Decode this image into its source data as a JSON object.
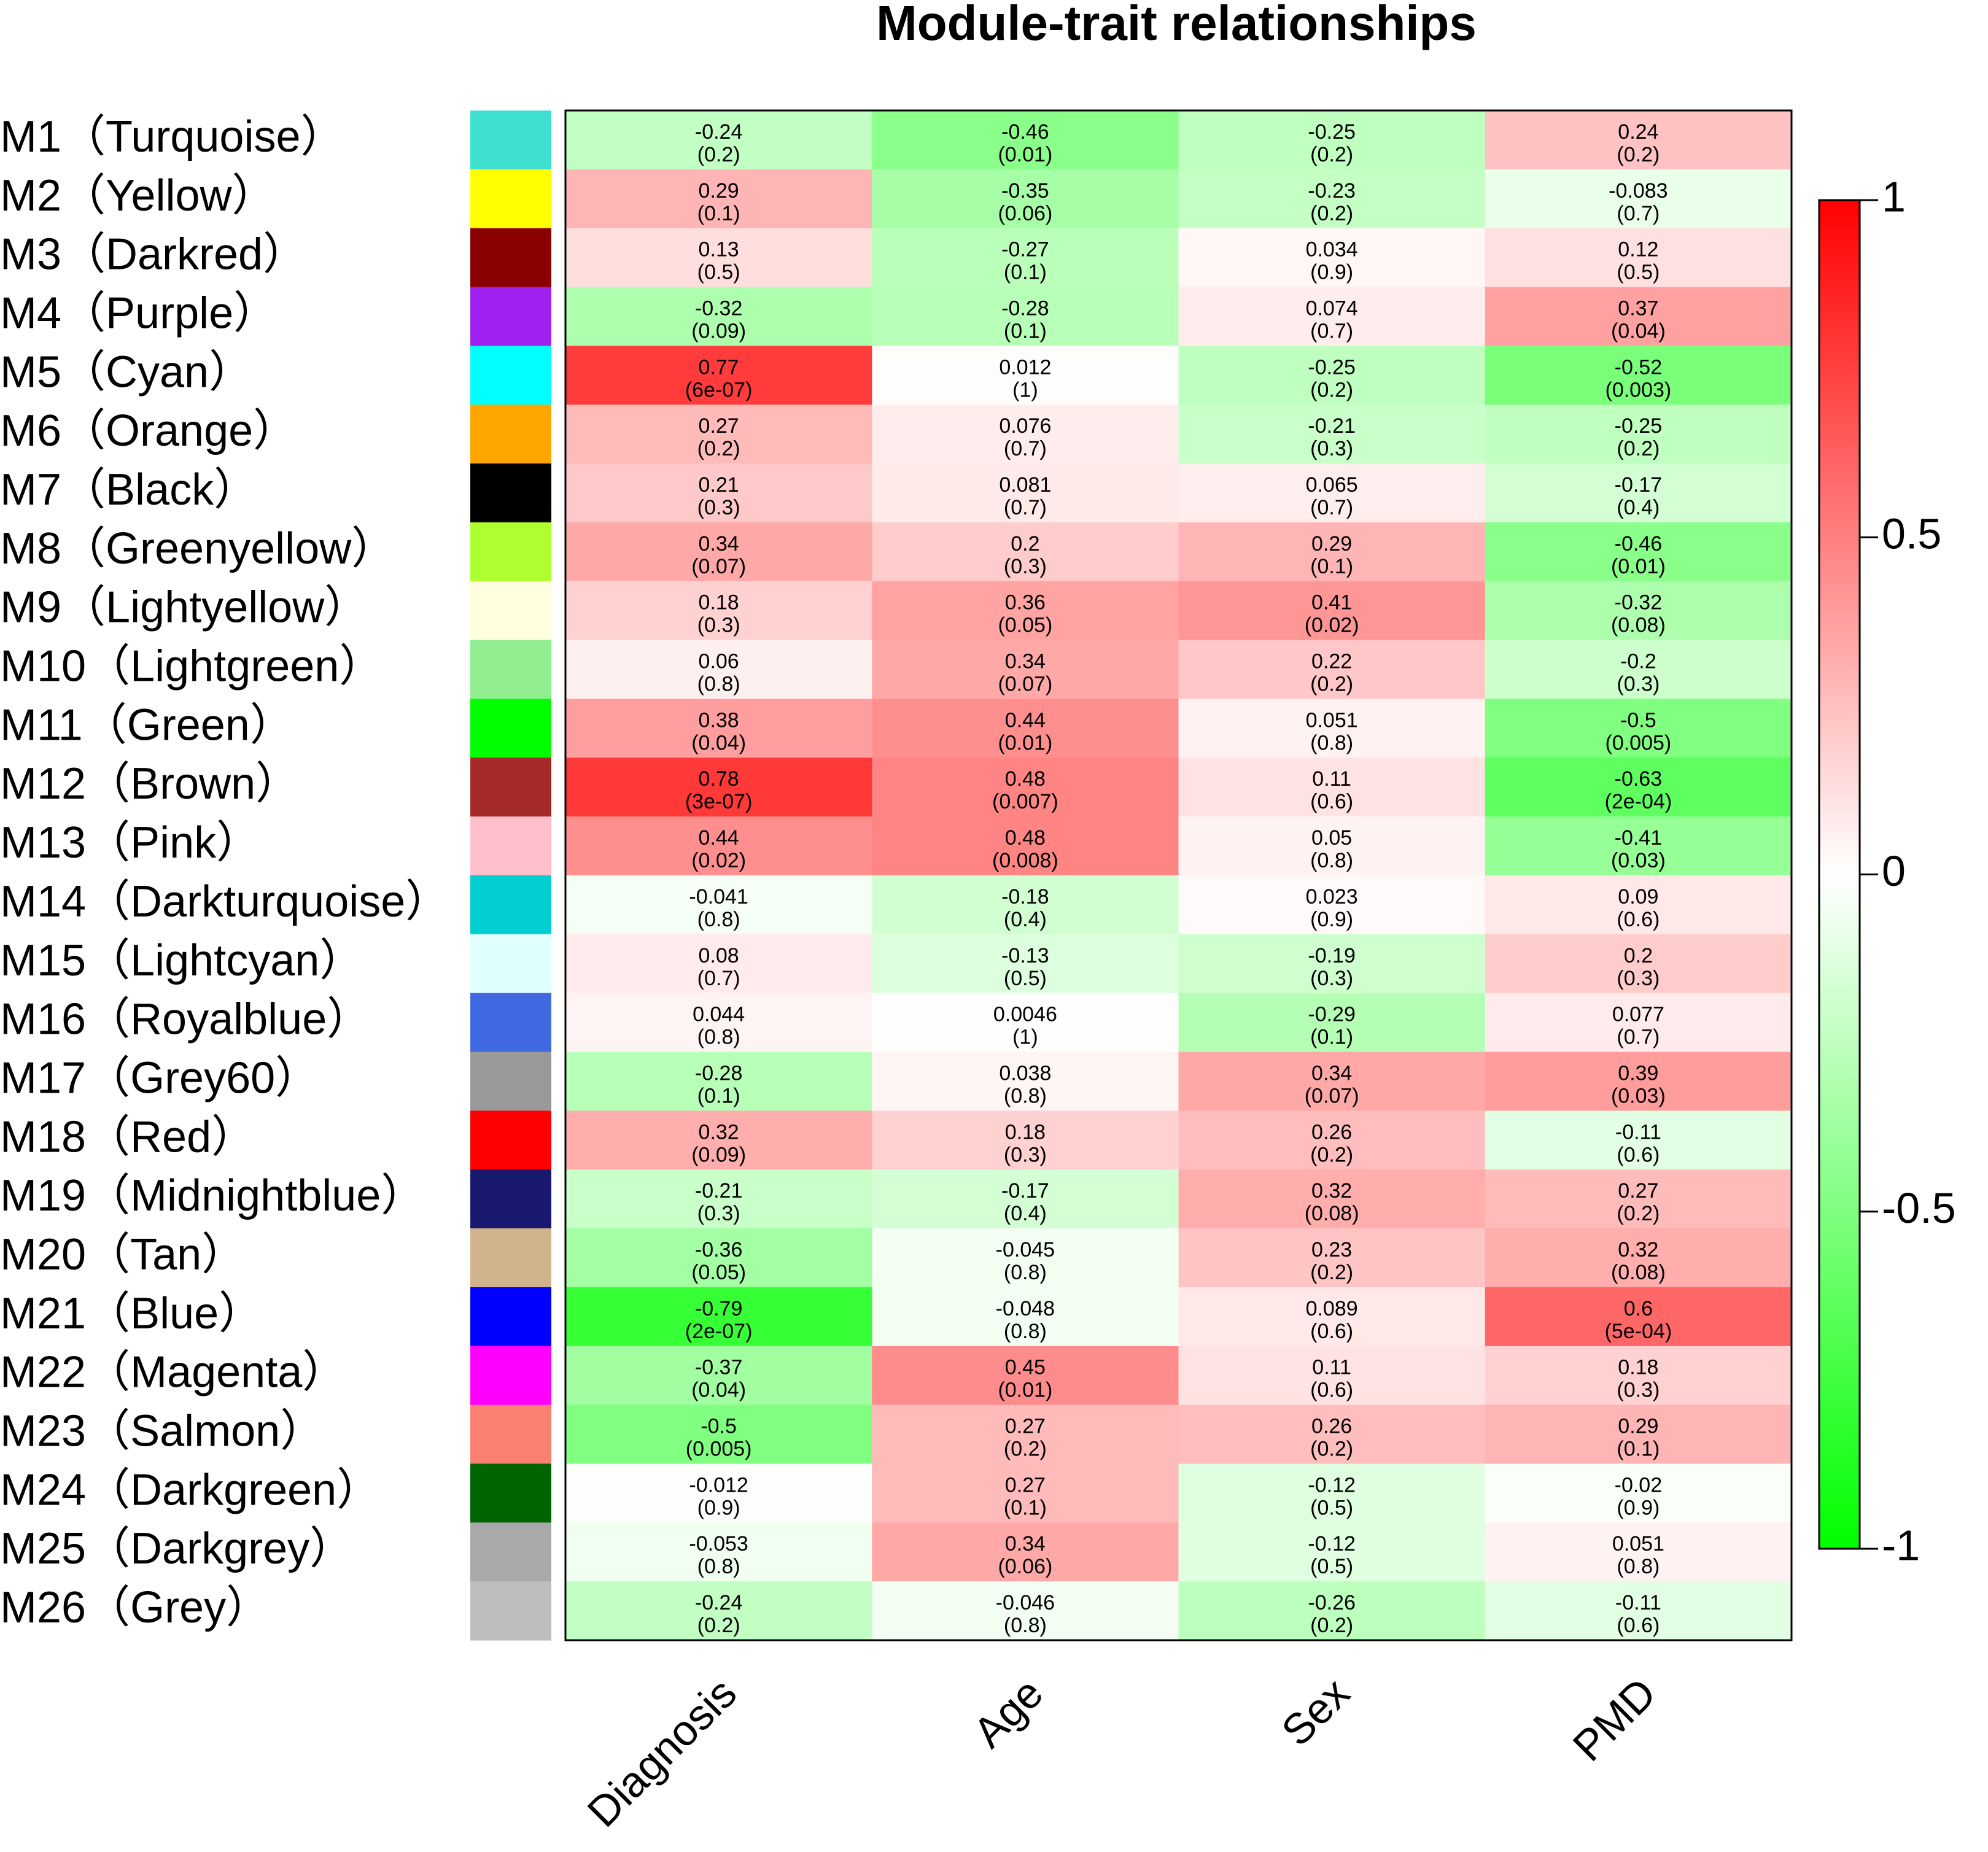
{
  "chart_data": {
    "type": "heatmap",
    "title": "Module-trait relationships",
    "rows": [
      "M1（Turquoise）",
      "M2（Yellow）",
      "M3（Darkred）",
      "M4（Purple）",
      "M5（Cyan）",
      "M6（Orange）",
      "M7（Black）",
      "M8（Greenyellow）",
      "M9（Lightyellow）",
      "M10（Lightgreen）",
      "M11（Green）",
      "M12（Brown）",
      "M13（Pink）",
      "M14（Darkturquoise）",
      "M15（Lightcyan）",
      "M16（Royalblue）",
      "M17（Grey60）",
      "M18（Red）",
      "M19（Midnightblue）",
      "M20（Tan）",
      "M21（Blue）",
      "M22（Magenta）",
      "M23（Salmon）",
      "M24（Darkgreen）",
      "M25（Darkgrey）",
      "M26（Grey）"
    ],
    "row_colors": [
      "#40e0d0",
      "#ffff00",
      "#8b0000",
      "#a020f0",
      "#00ffff",
      "#ffa500",
      "#000000",
      "#adff2f",
      "#ffffe0",
      "#90ee90",
      "#00ff00",
      "#a52a2a",
      "#ffc0cb",
      "#00ced1",
      "#e0ffff",
      "#4169e1",
      "#999999",
      "#ff0000",
      "#191970",
      "#d2b48c",
      "#0000ff",
      "#ff00ff",
      "#fa8072",
      "#006400",
      "#a9a9a9",
      "#bebebe"
    ],
    "columns": [
      "Diagnosis",
      "Age",
      "Sex",
      "PMD"
    ],
    "values": [
      [
        -0.24,
        -0.46,
        -0.25,
        0.24
      ],
      [
        0.29,
        -0.35,
        -0.23,
        -0.083
      ],
      [
        0.13,
        -0.27,
        0.034,
        0.12
      ],
      [
        -0.32,
        -0.28,
        0.074,
        0.37
      ],
      [
        0.77,
        0.012,
        -0.25,
        -0.52
      ],
      [
        0.27,
        0.076,
        -0.21,
        -0.25
      ],
      [
        0.21,
        0.081,
        0.065,
        -0.17
      ],
      [
        0.34,
        0.2,
        0.29,
        -0.46
      ],
      [
        0.18,
        0.36,
        0.41,
        -0.32
      ],
      [
        0.06,
        0.34,
        0.22,
        -0.2
      ],
      [
        0.38,
        0.44,
        0.051,
        -0.5
      ],
      [
        0.78,
        0.48,
        0.11,
        -0.63
      ],
      [
        0.44,
        0.48,
        0.05,
        -0.41
      ],
      [
        -0.041,
        -0.18,
        0.023,
        0.09
      ],
      [
        0.08,
        -0.13,
        -0.19,
        0.2
      ],
      [
        0.044,
        0.0046,
        -0.29,
        0.077
      ],
      [
        -0.28,
        0.038,
        0.34,
        0.39
      ],
      [
        0.32,
        0.18,
        0.26,
        -0.11
      ],
      [
        -0.21,
        -0.17,
        0.32,
        0.27
      ],
      [
        -0.36,
        -0.045,
        0.23,
        0.32
      ],
      [
        -0.79,
        -0.048,
        0.089,
        0.6
      ],
      [
        -0.37,
        0.45,
        0.11,
        0.18
      ],
      [
        -0.5,
        0.27,
        0.26,
        0.29
      ],
      [
        -0.012,
        0.27,
        -0.12,
        -0.02
      ],
      [
        -0.053,
        0.34,
        -0.12,
        0.051
      ],
      [
        -0.24,
        -0.046,
        -0.26,
        -0.11
      ]
    ],
    "p_labels": [
      [
        "(0.2)",
        "(0.01)",
        "(0.2)",
        "(0.2)"
      ],
      [
        "(0.1)",
        "(0.06)",
        "(0.2)",
        "(0.7)"
      ],
      [
        "(0.5)",
        "(0.1)",
        "(0.9)",
        "(0.5)"
      ],
      [
        "(0.09)",
        "(0.1)",
        "(0.7)",
        "(0.04)"
      ],
      [
        "(6e-07)",
        "(1)",
        "(0.2)",
        "(0.003)"
      ],
      [
        "(0.2)",
        "(0.7)",
        "(0.3)",
        "(0.2)"
      ],
      [
        "(0.3)",
        "(0.7)",
        "(0.7)",
        "(0.4)"
      ],
      [
        "(0.07)",
        "(0.3)",
        "(0.1)",
        "(0.01)"
      ],
      [
        "(0.3)",
        "(0.05)",
        "(0.02)",
        "(0.08)"
      ],
      [
        "(0.8)",
        "(0.07)",
        "(0.2)",
        "(0.3)"
      ],
      [
        "(0.04)",
        "(0.01)",
        "(0.8)",
        "(0.005)"
      ],
      [
        "(3e-07)",
        "(0.007)",
        "(0.6)",
        "(2e-04)"
      ],
      [
        "(0.02)",
        "(0.008)",
        "(0.8)",
        "(0.03)"
      ],
      [
        "(0.8)",
        "(0.4)",
        "(0.9)",
        "(0.6)"
      ],
      [
        "(0.7)",
        "(0.5)",
        "(0.3)",
        "(0.3)"
      ],
      [
        "(0.8)",
        "(1)",
        "(0.1)",
        "(0.7)"
      ],
      [
        "(0.1)",
        "(0.8)",
        "(0.07)",
        "(0.03)"
      ],
      [
        "(0.09)",
        "(0.3)",
        "(0.2)",
        "(0.6)"
      ],
      [
        "(0.3)",
        "(0.4)",
        "(0.08)",
        "(0.2)"
      ],
      [
        "(0.05)",
        "(0.8)",
        "(0.2)",
        "(0.08)"
      ],
      [
        "(2e-07)",
        "(0.8)",
        "(0.6)",
        "(5e-04)"
      ],
      [
        "(0.04)",
        "(0.01)",
        "(0.6)",
        "(0.3)"
      ],
      [
        "(0.005)",
        "(0.2)",
        "(0.2)",
        "(0.1)"
      ],
      [
        "(0.9)",
        "(0.1)",
        "(0.5)",
        "(0.9)"
      ],
      [
        "(0.8)",
        "(0.06)",
        "(0.5)",
        "(0.8)"
      ],
      [
        "(0.2)",
        "(0.8)",
        "(0.2)",
        "(0.6)"
      ]
    ],
    "clim": [
      -1,
      1
    ],
    "cticks": [
      -1,
      -0.5,
      0,
      0.5,
      1
    ],
    "colors": {
      "low": "#00ff00",
      "mid": "#ffffff",
      "high": "#ff0000"
    }
  }
}
